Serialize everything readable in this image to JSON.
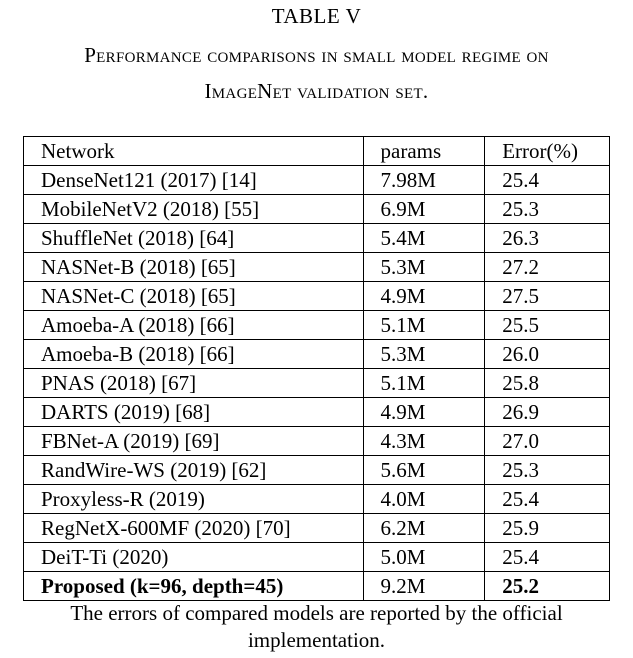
{
  "table_label": "TABLE V",
  "caption_line1": "Performance comparisons in small model regime on",
  "caption_line2": "ImageNet validation set.",
  "columns": [
    "Network",
    "params",
    "Error(%)"
  ],
  "rows": [
    {
      "network": "DenseNet121 (2017) [14]",
      "params": "7.98M",
      "error": "25.4"
    },
    {
      "network": "MobileNetV2 (2018) [55]",
      "params": "6.9M",
      "error": "25.3"
    },
    {
      "network": "ShuffleNet (2018) [64]",
      "params": "5.4M",
      "error": "26.3"
    },
    {
      "network": "NASNet-B (2018) [65]",
      "params": "5.3M",
      "error": "27.2"
    },
    {
      "network": "NASNet-C (2018) [65]",
      "params": "4.9M",
      "error": "27.5"
    },
    {
      "network": "Amoeba-A (2018) [66]",
      "params": "5.1M",
      "error": "25.5"
    },
    {
      "network": "Amoeba-B (2018) [66]",
      "params": "5.3M",
      "error": "26.0"
    },
    {
      "network": "PNAS (2018) [67]",
      "params": "5.1M",
      "error": "25.8"
    },
    {
      "network": "DARTS (2019) [68]",
      "params": "4.9M",
      "error": "26.9"
    },
    {
      "network": "FBNet-A (2019) [69]",
      "params": "4.3M",
      "error": "27.0"
    },
    {
      "network": "RandWire-WS (2019) [62]",
      "params": "5.6M",
      "error": "25.3"
    },
    {
      "network": "Proxyless-R (2019)",
      "params": "4.0M",
      "error": "25.4"
    },
    {
      "network": "RegNetX-600MF (2020) [70]",
      "params": "6.2M",
      "error": "25.9"
    },
    {
      "network": "DeiT-Ti (2020)",
      "params": "5.0M",
      "error": "25.4"
    }
  ],
  "proposed": {
    "network": "Proposed (k=96, depth=45)",
    "params": "9.2M",
    "error": "25.2"
  },
  "footnote_line1": "The errors of compared models are reported by the official",
  "footnote_line2": "implementation."
}
